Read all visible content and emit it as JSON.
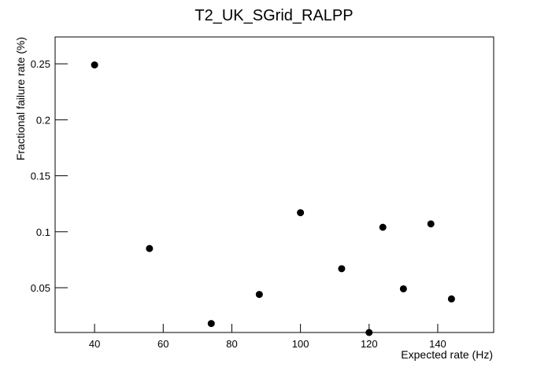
{
  "chart_data": {
    "type": "scatter",
    "title": "T2_UK_SGrid_RALPP",
    "x_label": "Expected rate (Hz)",
    "y_label": "Fractional failure rate (%)",
    "x": [
      40,
      56,
      74,
      88,
      100,
      112,
      120,
      124,
      130,
      138,
      144
    ],
    "values": [
      0.249,
      0.085,
      0.018,
      0.044,
      0.117,
      0.067,
      0.01,
      0.104,
      0.049,
      0.107,
      0.04
    ],
    "color": "#000000",
    "xlim": [
      28.5,
      156.3
    ],
    "xticks": [
      40,
      60,
      80,
      100,
      120,
      140
    ],
    "ylim": [
      0.01,
      0.274
    ],
    "yticks": [
      0.05,
      0.1,
      0.15,
      0.2,
      0.25
    ]
  }
}
